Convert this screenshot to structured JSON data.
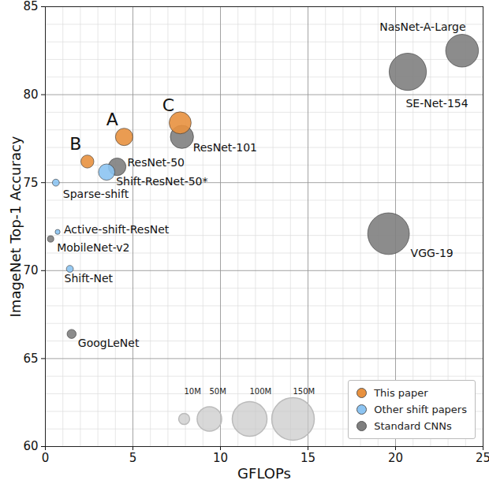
{
  "chart_data": {
    "type": "scatter",
    "x_label": "GFLOPs",
    "y_label": "ImageNet Top-1 Accuracy",
    "xlim": [
      0,
      25
    ],
    "ylim": [
      60,
      85
    ],
    "xticks": [
      0,
      5,
      10,
      15,
      20,
      25
    ],
    "yticks": [
      60,
      65,
      70,
      75,
      80,
      85
    ],
    "grid": true,
    "legend": "lower right",
    "marker": "circle",
    "size_legend": [
      {
        "value": 10,
        "label": "10M"
      },
      {
        "value": 50,
        "label": "50M"
      },
      {
        "value": 100,
        "label": "100M"
      },
      {
        "value": 150,
        "label": "150M"
      }
    ],
    "series": [
      {
        "name": "This paper",
        "color": "#e8913f",
        "labels": [
          "A",
          "B",
          "C"
        ],
        "x": [
          4.5,
          2.4,
          7.7
        ],
        "y": [
          77.6,
          76.2,
          78.4
        ],
        "size": [
          25,
          14,
          40
        ]
      },
      {
        "name": "Other shift papers",
        "color": "#8cc4f2",
        "labels": [
          "Shift-ResNet-50*",
          "Sparse-shift",
          "Active-shift-ResNet",
          "Shift-Net"
        ],
        "x": [
          3.5,
          0.6,
          0.7,
          1.4
        ],
        "y": [
          75.6,
          75.0,
          72.2,
          70.1
        ],
        "size": [
          22,
          4,
          2,
          4
        ]
      },
      {
        "name": "Standard CNNs",
        "color": "#7f7f7f",
        "labels": [
          "ResNet-50",
          "ResNet-101",
          "MobileNet-v2",
          "GoogLeNet",
          "NasNet-A-Large",
          "SE-Net-154",
          "VGG-19"
        ],
        "x": [
          4.1,
          7.8,
          0.3,
          1.5,
          23.8,
          20.7,
          19.6
        ],
        "y": [
          75.9,
          77.6,
          71.8,
          66.4,
          82.5,
          81.3,
          72.1
        ],
        "size": [
          25.6,
          44.5,
          3.4,
          6.8,
          88.9,
          115,
          143.7
        ]
      }
    ]
  }
}
